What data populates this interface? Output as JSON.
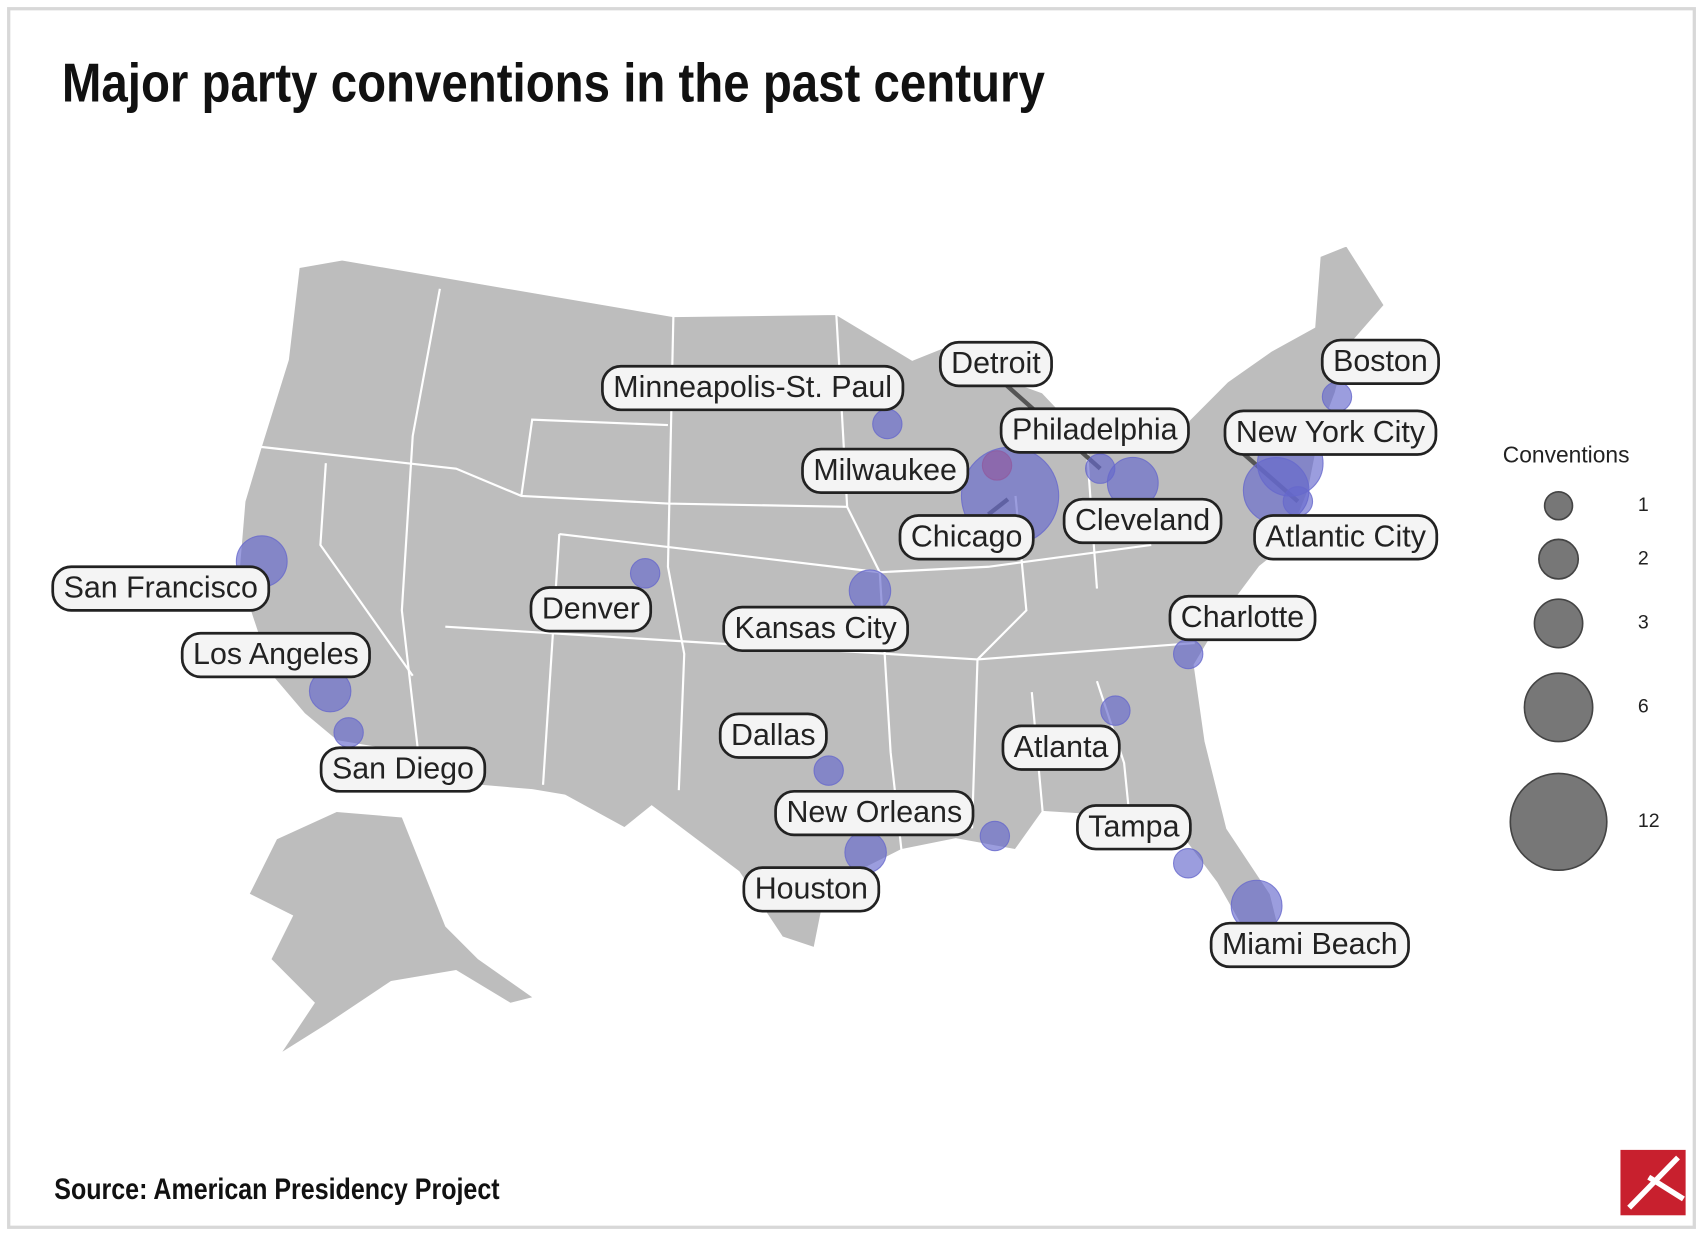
{
  "chart_data": {
    "type": "bubble-map",
    "title": "Major party conventions in the past century",
    "source": "Source: American Presidency Project",
    "points": [
      {
        "name": "Minneapolis-St. Paul",
        "value": 1,
        "color": "#6668cc"
      },
      {
        "name": "Detroit",
        "value": 1,
        "color": "#6668cc"
      },
      {
        "name": "Boston",
        "value": 1,
        "color": "#6668cc"
      },
      {
        "name": "Philadelphia",
        "value": 5,
        "color": "#6668cc"
      },
      {
        "name": "New York City",
        "value": 5,
        "color": "#6668cc"
      },
      {
        "name": "Milwaukee",
        "value": 1,
        "color": "#e0404a"
      },
      {
        "name": "Chicago",
        "value": 11,
        "color": "#6668cc"
      },
      {
        "name": "Cleveland",
        "value": 3,
        "color": "#6668cc"
      },
      {
        "name": "Atlantic City",
        "value": 1,
        "color": "#6668cc"
      },
      {
        "name": "San Francisco",
        "value": 3,
        "color": "#6668cc"
      },
      {
        "name": "Denver",
        "value": 1,
        "color": "#6668cc"
      },
      {
        "name": "Kansas City",
        "value": 2,
        "color": "#6668cc"
      },
      {
        "name": "Charlotte",
        "value": 1,
        "color": "#6668cc"
      },
      {
        "name": "Los Angeles",
        "value": 2,
        "color": "#6668cc"
      },
      {
        "name": "San Diego",
        "value": 1,
        "color": "#6668cc"
      },
      {
        "name": "Dallas",
        "value": 1,
        "color": "#6668cc"
      },
      {
        "name": "Atlanta",
        "value": 1,
        "color": "#6668cc"
      },
      {
        "name": "New Orleans",
        "value": 1,
        "color": "#6668cc"
      },
      {
        "name": "Tampa",
        "value": 1,
        "color": "#6668cc"
      },
      {
        "name": "Houston",
        "value": 2,
        "color": "#6668cc"
      },
      {
        "name": "Miami Beach",
        "value": 3,
        "color": "#6668cc"
      }
    ],
    "legend": {
      "title": "Conventions",
      "values": [
        1,
        2,
        3,
        6,
        12
      ],
      "color": "#777777"
    }
  }
}
